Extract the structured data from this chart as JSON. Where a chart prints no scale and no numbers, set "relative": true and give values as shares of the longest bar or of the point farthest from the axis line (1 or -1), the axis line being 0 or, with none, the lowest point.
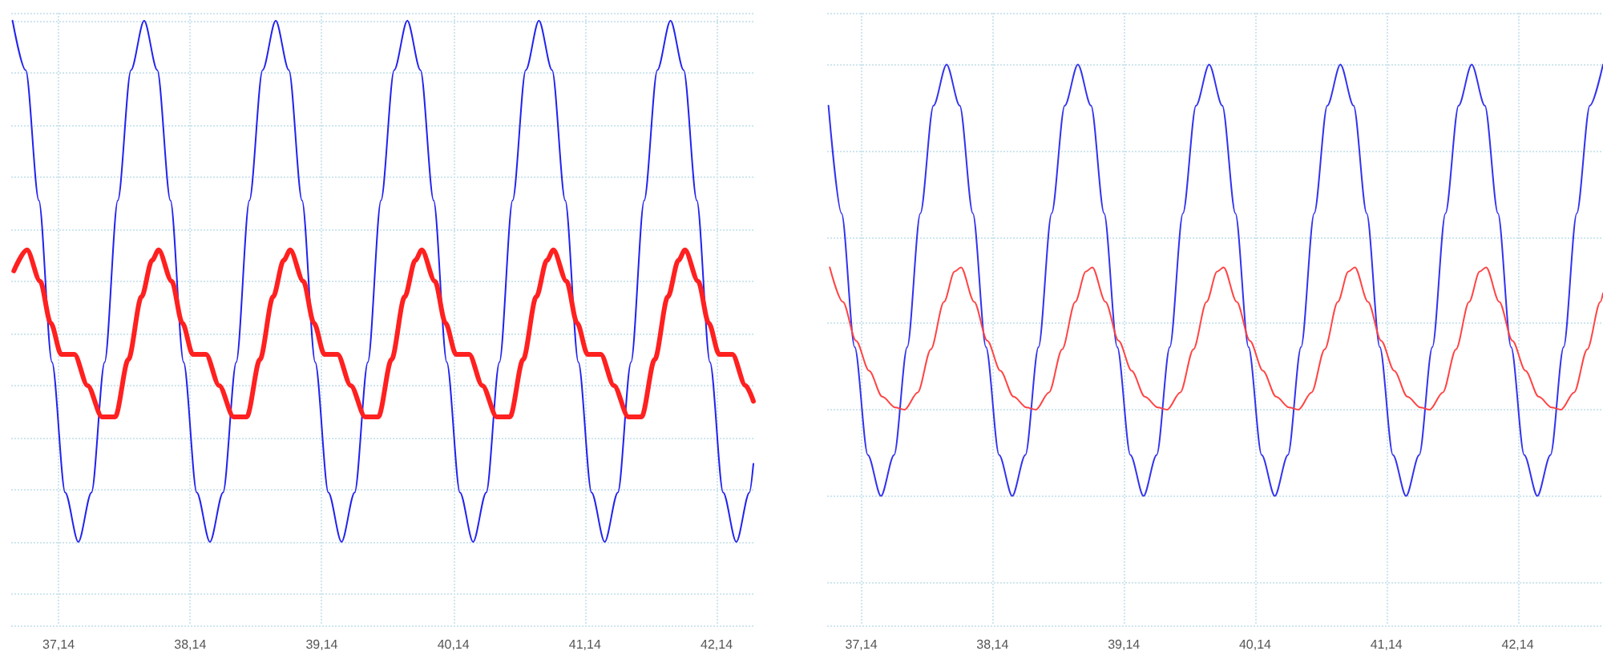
{
  "chart_data": [
    {
      "type": "line",
      "relative": true,
      "grid": true,
      "marker": "none",
      "line_style": "solid",
      "xlim": [
        36.78,
        42.42
      ],
      "xticks": [
        {
          "value": 37.14,
          "label": "37,14"
        },
        {
          "value": 38.14,
          "label": "38,14"
        },
        {
          "value": 39.14,
          "label": "39,14"
        },
        {
          "value": 40.14,
          "label": "40,14"
        },
        {
          "value": 41.14,
          "label": "41,14"
        },
        {
          "value": 42.14,
          "label": "42,14"
        }
      ],
      "series": [
        {
          "color": "#2222ee",
          "x": [
            36.79,
            36.89,
            36.99,
            37.09,
            37.19,
            37.29,
            37.39,
            37.49,
            37.59,
            37.69,
            37.79,
            37.89,
            37.99,
            38.09,
            38.19,
            38.29,
            38.39,
            38.49,
            38.59,
            38.69,
            38.79,
            38.89,
            38.99,
            39.09,
            39.19,
            39.29,
            39.39,
            39.49,
            39.59,
            39.69,
            39.79,
            39.89,
            39.99,
            40.09,
            40.19,
            40.29,
            40.39,
            40.49,
            40.59,
            40.69,
            40.79,
            40.89,
            40.99,
            41.09,
            41.19,
            41.29,
            41.39,
            41.49,
            41.59,
            41.69,
            41.79,
            41.89,
            41.99,
            42.09,
            42.19,
            42.29,
            42.39,
            42.42
          ],
          "values": [
            1,
            0.905,
            0.655,
            0.345,
            0.095,
            0,
            0.095,
            0.345,
            0.655,
            0.905,
            1,
            0.905,
            0.655,
            0.345,
            0.095,
            0,
            0.095,
            0.345,
            0.655,
            0.905,
            1,
            0.905,
            0.655,
            0.345,
            0.095,
            0,
            0.095,
            0.345,
            0.655,
            0.905,
            1,
            0.905,
            0.655,
            0.345,
            0.095,
            0,
            0.095,
            0.345,
            0.655,
            0.905,
            1,
            0.905,
            0.655,
            0.345,
            0.095,
            0,
            0.095,
            0.345,
            0.655,
            0.905,
            1,
            0.905,
            0.655,
            0.345,
            0.095,
            0,
            0.095,
            0.15
          ]
        },
        {
          "color": "#ff2020",
          "x": [
            36.8,
            36.9,
            37.0,
            37.08,
            37.16,
            37.26,
            37.36,
            37.47,
            37.57,
            37.67,
            37.77,
            37.85,
            37.9,
            38.0,
            38.08,
            38.16,
            38.26,
            38.36,
            38.47,
            38.57,
            38.67,
            38.77,
            38.85,
            38.9,
            39.0,
            39.08,
            39.16,
            39.26,
            39.36,
            39.47,
            39.57,
            39.67,
            39.77,
            39.85,
            39.9,
            40.0,
            40.08,
            40.16,
            40.26,
            40.36,
            40.47,
            40.57,
            40.67,
            40.77,
            40.85,
            40.9,
            41.0,
            41.08,
            41.16,
            41.26,
            41.36,
            41.47,
            41.57,
            41.67,
            41.77,
            41.85,
            41.9,
            42.0,
            42.08,
            42.16,
            42.26,
            42.36,
            42.42
          ],
          "values": [
            0.52,
            0.56,
            0.5,
            0.42,
            0.36,
            0.36,
            0.3,
            0.24,
            0.24,
            0.35,
            0.47,
            0.54,
            0.56,
            0.5,
            0.42,
            0.36,
            0.36,
            0.3,
            0.24,
            0.24,
            0.35,
            0.47,
            0.54,
            0.56,
            0.5,
            0.42,
            0.36,
            0.36,
            0.3,
            0.24,
            0.24,
            0.35,
            0.47,
            0.54,
            0.56,
            0.5,
            0.42,
            0.36,
            0.36,
            0.3,
            0.24,
            0.24,
            0.35,
            0.47,
            0.54,
            0.56,
            0.5,
            0.42,
            0.36,
            0.36,
            0.3,
            0.24,
            0.24,
            0.35,
            0.47,
            0.54,
            0.56,
            0.5,
            0.42,
            0.36,
            0.36,
            0.3,
            0.27
          ]
        }
      ]
    },
    {
      "type": "line",
      "relative": true,
      "grid": true,
      "marker": "none",
      "line_style": "solid",
      "xlim": [
        36.88,
        42.79
      ],
      "xticks": [
        {
          "value": 37.14,
          "label": "37,14"
        },
        {
          "value": 38.14,
          "label": "38,14"
        },
        {
          "value": 39.14,
          "label": "39,14"
        },
        {
          "value": 40.14,
          "label": "40,14"
        },
        {
          "value": 41.14,
          "label": "41,14"
        },
        {
          "value": 42.14,
          "label": "42,14"
        }
      ],
      "series": [
        {
          "color": "#3333ee",
          "x": [
            36.89,
            36.99,
            37.09,
            37.19,
            37.29,
            37.39,
            37.49,
            37.59,
            37.69,
            37.79,
            37.89,
            37.99,
            38.09,
            38.19,
            38.29,
            38.39,
            38.49,
            38.59,
            38.69,
            38.79,
            38.89,
            38.99,
            39.09,
            39.19,
            39.29,
            39.39,
            39.49,
            39.59,
            39.69,
            39.79,
            39.89,
            39.99,
            40.09,
            40.19,
            40.29,
            40.39,
            40.49,
            40.59,
            40.69,
            40.79,
            40.89,
            40.99,
            41.09,
            41.19,
            41.29,
            41.39,
            41.49,
            41.59,
            41.69,
            41.79,
            41.89,
            41.99,
            42.09,
            42.19,
            42.29,
            42.39,
            42.49,
            42.59,
            42.69,
            42.79
          ],
          "values": [
            0.905,
            0.655,
            0.345,
            0.095,
            0,
            0.095,
            0.345,
            0.655,
            0.905,
            1,
            0.905,
            0.655,
            0.345,
            0.095,
            0,
            0.095,
            0.345,
            0.655,
            0.905,
            1,
            0.905,
            0.655,
            0.345,
            0.095,
            0,
            0.095,
            0.345,
            0.655,
            0.905,
            1,
            0.905,
            0.655,
            0.345,
            0.095,
            0,
            0.095,
            0.345,
            0.655,
            0.905,
            1,
            0.905,
            0.655,
            0.345,
            0.095,
            0,
            0.095,
            0.345,
            0.655,
            0.905,
            1,
            0.905,
            0.655,
            0.345,
            0.095,
            0,
            0.095,
            0.345,
            0.655,
            0.905,
            1
          ]
        },
        {
          "color": "#ff4444",
          "x": [
            36.9,
            37.0,
            37.1,
            37.2,
            37.3,
            37.4,
            37.47,
            37.57,
            37.67,
            37.77,
            37.85,
            37.9,
            38.0,
            38.1,
            38.2,
            38.3,
            38.4,
            38.47,
            38.57,
            38.67,
            38.77,
            38.85,
            38.9,
            39.0,
            39.1,
            39.2,
            39.3,
            39.4,
            39.47,
            39.57,
            39.67,
            39.77,
            39.85,
            39.9,
            40.0,
            40.1,
            40.2,
            40.3,
            40.4,
            40.47,
            40.57,
            40.67,
            40.77,
            40.85,
            40.9,
            41.0,
            41.1,
            41.2,
            41.3,
            41.4,
            41.47,
            41.57,
            41.67,
            41.77,
            41.85,
            41.9,
            42.0,
            42.1,
            42.2,
            42.3,
            42.4,
            42.47,
            42.57,
            42.67,
            42.77,
            42.79
          ],
          "values": [
            0.53,
            0.45,
            0.36,
            0.29,
            0.23,
            0.205,
            0.2,
            0.24,
            0.34,
            0.45,
            0.52,
            0.53,
            0.45,
            0.36,
            0.29,
            0.23,
            0.205,
            0.2,
            0.24,
            0.34,
            0.45,
            0.52,
            0.53,
            0.45,
            0.36,
            0.29,
            0.23,
            0.205,
            0.2,
            0.24,
            0.34,
            0.45,
            0.52,
            0.53,
            0.45,
            0.36,
            0.29,
            0.23,
            0.205,
            0.2,
            0.24,
            0.34,
            0.45,
            0.52,
            0.53,
            0.45,
            0.36,
            0.29,
            0.23,
            0.205,
            0.2,
            0.24,
            0.34,
            0.45,
            0.52,
            0.53,
            0.45,
            0.36,
            0.29,
            0.23,
            0.205,
            0.2,
            0.24,
            0.34,
            0.45,
            0.47
          ]
        }
      ]
    }
  ]
}
